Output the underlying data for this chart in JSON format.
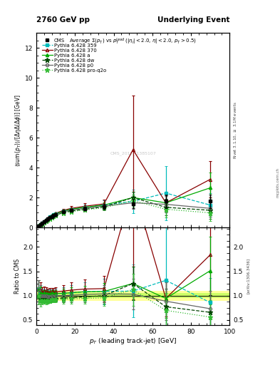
{
  "title_left": "2760 GeV pp",
  "title_right": "Underlying Event",
  "plot_title": "Average $\\Sigma(p_T)$ vs $p_T^{lead}$ ($|\\eta_l|<2.0$, $\\eta|<2.0$, $p_T>0.5$)",
  "xlabel": "$p_T$ (leading track-jet) [GeV]",
  "ylabel_main": "$\\langle$sum$(p_T)\\rangle$$/[\\Delta\\eta\\Delta(\\Delta\\phi)]$ [GeV]",
  "ylabel_ratio": "Ratio to CMS",
  "right_label_top": "Rivet 3.1.10, $\\geq$ 3.1M events",
  "right_label_bot": "[arXiv:1306.3436]",
  "right_label_far": "mcplots.cern.ch",
  "cms_watermark": "CMS_2015_I1385107",
  "xlim": [
    0,
    100
  ],
  "ylim_main": [
    0,
    13
  ],
  "ylim_ratio": [
    0.4,
    2.4
  ],
  "yticks_main": [
    0,
    2,
    4,
    6,
    8,
    10,
    12
  ],
  "yticks_ratio": [
    0.5,
    1.0,
    1.5,
    2.0
  ],
  "cms_x": [
    1,
    2,
    3,
    4,
    5,
    6,
    7,
    8,
    9,
    10,
    14,
    18,
    25,
    35,
    50,
    67,
    90
  ],
  "cms_y": [
    0.08,
    0.18,
    0.28,
    0.38,
    0.48,
    0.58,
    0.67,
    0.74,
    0.82,
    0.88,
    1.05,
    1.15,
    1.25,
    1.38,
    1.6,
    1.75,
    1.75
  ],
  "cms_yerr": [
    0.01,
    0.02,
    0.02,
    0.02,
    0.03,
    0.03,
    0.03,
    0.04,
    0.04,
    0.05,
    0.08,
    0.1,
    0.12,
    0.18,
    0.3,
    0.45,
    0.45
  ],
  "p359_x": [
    1,
    2,
    3,
    4,
    5,
    6,
    7,
    8,
    9,
    10,
    14,
    18,
    25,
    35,
    50,
    67,
    90
  ],
  "p359_y": [
    0.09,
    0.19,
    0.29,
    0.4,
    0.5,
    0.6,
    0.7,
    0.78,
    0.85,
    0.92,
    1.1,
    1.22,
    1.35,
    1.5,
    1.75,
    2.3,
    1.5
  ],
  "p359_yerr": [
    0.01,
    0.02,
    0.02,
    0.02,
    0.03,
    0.03,
    0.04,
    0.04,
    0.05,
    0.06,
    0.1,
    0.14,
    0.2,
    0.3,
    0.8,
    1.8,
    0.8
  ],
  "p370_x": [
    1,
    2,
    3,
    4,
    5,
    6,
    7,
    8,
    9,
    10,
    14,
    18,
    25,
    35,
    50,
    67,
    90
  ],
  "p370_y": [
    0.09,
    0.2,
    0.3,
    0.42,
    0.52,
    0.62,
    0.72,
    0.8,
    0.88,
    0.95,
    1.15,
    1.28,
    1.42,
    1.58,
    5.2,
    1.65,
    3.22
  ],
  "p370_yerr": [
    0.01,
    0.02,
    0.02,
    0.02,
    0.03,
    0.03,
    0.04,
    0.04,
    0.05,
    0.06,
    0.1,
    0.14,
    0.2,
    0.3,
    3.6,
    0.5,
    1.2
  ],
  "pa_x": [
    1,
    2,
    3,
    4,
    5,
    6,
    7,
    8,
    9,
    10,
    14,
    18,
    25,
    35,
    50,
    67,
    90
  ],
  "pa_y": [
    0.09,
    0.19,
    0.29,
    0.4,
    0.5,
    0.6,
    0.7,
    0.78,
    0.85,
    0.92,
    1.1,
    1.22,
    1.35,
    1.5,
    2.0,
    1.65,
    2.65
  ],
  "pa_yerr": [
    0.01,
    0.01,
    0.01,
    0.01,
    0.02,
    0.02,
    0.02,
    0.02,
    0.02,
    0.03,
    0.05,
    0.06,
    0.08,
    0.15,
    0.4,
    0.55,
    1.0
  ],
  "pdw_x": [
    1,
    2,
    3,
    4,
    5,
    6,
    7,
    8,
    9,
    10,
    14,
    18,
    25,
    35,
    50,
    67,
    90
  ],
  "pdw_y": [
    0.08,
    0.17,
    0.26,
    0.35,
    0.44,
    0.53,
    0.62,
    0.7,
    0.77,
    0.83,
    1.0,
    1.1,
    1.22,
    1.38,
    2.0,
    1.35,
    1.15
  ],
  "pdw_yerr": [
    0.01,
    0.01,
    0.01,
    0.01,
    0.02,
    0.02,
    0.02,
    0.02,
    0.02,
    0.03,
    0.05,
    0.06,
    0.08,
    0.15,
    0.4,
    0.55,
    0.55
  ],
  "pp0_x": [
    1,
    2,
    3,
    4,
    5,
    6,
    7,
    8,
    9,
    10,
    14,
    18,
    25,
    35,
    50,
    67,
    90
  ],
  "pp0_y": [
    0.09,
    0.18,
    0.28,
    0.38,
    0.48,
    0.57,
    0.66,
    0.74,
    0.81,
    0.88,
    1.05,
    1.16,
    1.28,
    1.43,
    1.65,
    1.55,
    1.28
  ],
  "pp0_yerr": [
    0.01,
    0.01,
    0.01,
    0.01,
    0.02,
    0.02,
    0.02,
    0.02,
    0.02,
    0.03,
    0.05,
    0.06,
    0.08,
    0.15,
    0.4,
    0.55,
    0.55
  ],
  "pro_x": [
    1,
    2,
    3,
    4,
    5,
    6,
    7,
    8,
    9,
    10,
    14,
    18,
    25,
    35,
    50,
    67,
    90
  ],
  "pro_y": [
    0.08,
    0.16,
    0.25,
    0.34,
    0.43,
    0.52,
    0.6,
    0.68,
    0.75,
    0.81,
    0.97,
    1.07,
    1.18,
    1.32,
    1.8,
    1.22,
    0.98
  ],
  "pro_yerr": [
    0.01,
    0.01,
    0.01,
    0.01,
    0.02,
    0.02,
    0.02,
    0.02,
    0.02,
    0.03,
    0.05,
    0.06,
    0.08,
    0.15,
    0.4,
    0.55,
    0.55
  ],
  "color_cms": "#000000",
  "color_p359": "#00bbbb",
  "color_p370": "#880000",
  "color_pa": "#00aa00",
  "color_pdw": "#004400",
  "color_pp0": "#666666",
  "color_pro": "#33bb33",
  "band_yellow": "#ffff99",
  "band_green": "#ccff66",
  "ratio_band_half_outer": 0.1,
  "ratio_band_half_inner": 0.05
}
